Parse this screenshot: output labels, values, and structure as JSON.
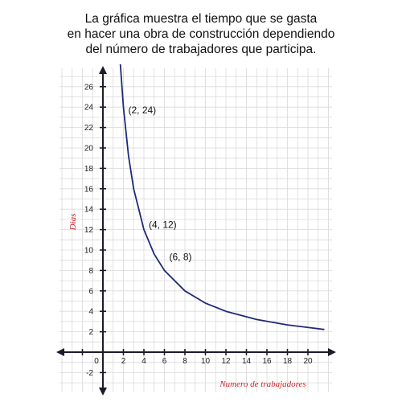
{
  "title_lines": [
    "La gráfica muestra el tiempo que se gasta",
    "en hacer una obra de construcción dependiendo",
    "del número de trabajadores que participa."
  ],
  "chart_data": {
    "type": "line",
    "xlabel": "Numero de trabajadores",
    "ylabel": "Dias",
    "xlim": [
      -2,
      22
    ],
    "ylim": [
      -4,
      28
    ],
    "x_ticks": [
      -2,
      0,
      2,
      4,
      6,
      8,
      10,
      12,
      14,
      16,
      18,
      20
    ],
    "x_tick_labels": [
      "",
      "0",
      "2",
      "4",
      "6",
      "8",
      "10",
      "12",
      "14",
      "16",
      "18",
      "20"
    ],
    "y_ticks": [
      -2,
      2,
      4,
      6,
      8,
      10,
      12,
      14,
      16,
      18,
      20,
      22,
      24,
      26
    ],
    "y_tick_labels": [
      "-2",
      "2",
      "4",
      "6",
      "8",
      "10",
      "12",
      "14",
      "16",
      "18",
      "20",
      "22",
      "24",
      "26"
    ],
    "grid": true,
    "series": [
      {
        "x": [
          1.7,
          2,
          2.5,
          3,
          4,
          5,
          6,
          8,
          10,
          12,
          15,
          18,
          21.6
        ],
        "y": [
          28.2,
          24,
          19.2,
          16,
          12,
          9.6,
          8,
          6,
          4.8,
          4,
          3.2,
          2.67,
          2.22
        ],
        "color": "#1f2a78"
      }
    ],
    "annotations": [
      {
        "text": "(2, 24)",
        "x": 2,
        "y": 24
      },
      {
        "text": "(4, 12)",
        "x": 4,
        "y": 12
      },
      {
        "text": "(6, 8)",
        "x": 6,
        "y": 8
      }
    ]
  },
  "colors": {
    "curve": "#1f2a78",
    "axis": "#1b1b2b",
    "grid": "#dadada",
    "axis_label": "#d0202a"
  }
}
